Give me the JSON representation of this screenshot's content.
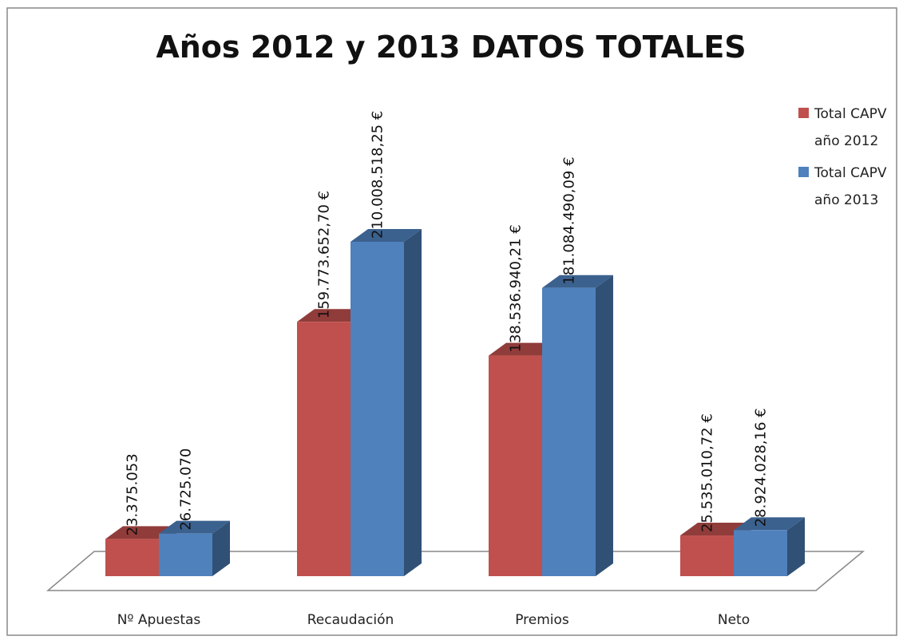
{
  "chart_data": {
    "type": "bar3d",
    "title": "Años 2012 y 2013 DATOS TOTALES",
    "categories": [
      "Nº Apuestas",
      "Recaudación",
      "Premios",
      "Neto"
    ],
    "series": [
      {
        "name": "Total CAPV año 2012",
        "color": "#c0504d",
        "values": [
          23375053,
          159773652.7,
          138536940.21,
          25535010.72
        ],
        "value_labels": [
          "23.375.053",
          "159.773.652,70 €",
          "138.536.940,21 €",
          "25.535.010,72 €"
        ]
      },
      {
        "name": "Total CAPV año 2013",
        "color": "#4f81bd",
        "values": [
          26725070,
          210008518.25,
          181084490.09,
          28924028.16
        ],
        "value_labels": [
          "26.725.070",
          "210.008.518,25 €",
          "181.084.490,09 €",
          "28.924.028,16 €"
        ]
      }
    ],
    "legend": "top-right"
  }
}
